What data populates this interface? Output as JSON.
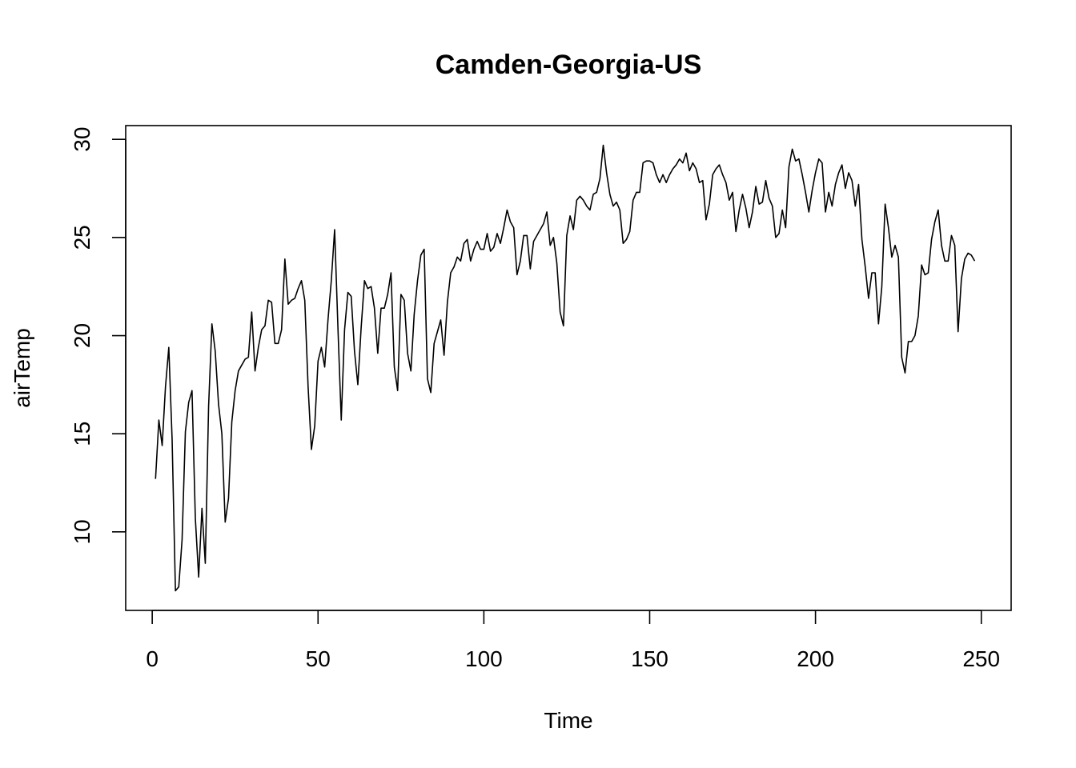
{
  "chart_data": {
    "type": "line",
    "title": "Camden-Georgia-US",
    "xlabel": "Time",
    "ylabel": "airTemp",
    "xlim": [
      -8,
      259
    ],
    "ylim": [
      6.0,
      30.7
    ],
    "xticks": [
      0,
      50,
      100,
      150,
      200,
      250
    ],
    "yticks": [
      10,
      15,
      20,
      25,
      30
    ],
    "grid": false,
    "legend": "none",
    "series": [
      {
        "values": [
          12.7,
          15.7,
          14.4,
          17.4,
          19.4,
          14.7,
          7.0,
          7.2,
          9.6,
          15.1,
          16.6,
          17.2,
          10.7,
          7.7,
          11.2,
          8.4,
          16.4,
          20.6,
          19.2,
          16.5,
          15.0,
          10.5,
          11.7,
          15.6,
          17.2,
          18.2,
          18.5,
          18.8,
          18.9,
          21.2,
          18.2,
          19.4,
          20.3,
          20.5,
          21.8,
          21.7,
          19.6,
          19.6,
          20.3,
          23.9,
          21.6,
          21.8,
          21.9,
          22.4,
          22.8,
          21.8,
          17.4,
          14.2,
          15.4,
          18.7,
          19.4,
          18.4,
          20.8,
          22.8,
          25.4,
          20.4,
          15.7,
          20.3,
          22.2,
          22.0,
          19.2,
          17.5,
          20.4,
          22.8,
          22.4,
          22.5,
          21.4,
          19.1,
          21.4,
          21.4,
          22.1,
          23.2,
          18.4,
          17.2,
          22.1,
          21.8,
          19.1,
          18.2,
          21.1,
          22.8,
          24.1,
          24.4,
          17.8,
          17.1,
          19.6,
          20.2,
          20.8,
          19.0,
          21.7,
          23.2,
          23.5,
          24.0,
          23.8,
          24.7,
          24.9,
          23.8,
          24.4,
          24.8,
          24.4,
          24.4,
          25.2,
          24.3,
          24.5,
          25.2,
          24.7,
          25.5,
          26.4,
          25.8,
          25.5,
          23.1,
          23.8,
          25.1,
          25.1,
          23.4,
          24.8,
          25.1,
          25.4,
          25.7,
          26.3,
          24.6,
          25.0,
          23.7,
          21.2,
          20.5,
          25.1,
          26.1,
          25.4,
          26.9,
          27.1,
          26.9,
          26.6,
          26.4,
          27.2,
          27.3,
          28.0,
          29.7,
          28.3,
          27.2,
          26.6,
          26.8,
          26.4,
          24.7,
          24.9,
          25.3,
          26.9,
          27.3,
          27.3,
          28.8,
          28.9,
          28.9,
          28.8,
          28.2,
          27.8,
          28.2,
          27.8,
          28.2,
          28.5,
          28.7,
          29.0,
          28.8,
          29.3,
          28.4,
          28.8,
          28.5,
          27.8,
          27.9,
          25.9,
          26.7,
          28.2,
          28.5,
          28.7,
          28.2,
          27.8,
          26.9,
          27.3,
          25.3,
          26.4,
          27.2,
          26.5,
          25.5,
          26.3,
          27.6,
          26.7,
          26.8,
          27.9,
          27.0,
          26.6,
          25.0,
          25.2,
          26.4,
          25.5,
          28.6,
          29.5,
          28.9,
          29.0,
          28.2,
          27.3,
          26.3,
          27.4,
          28.3,
          29.0,
          28.8,
          26.3,
          27.3,
          26.6,
          27.7,
          28.3,
          28.7,
          27.5,
          28.3,
          27.9,
          26.6,
          27.7,
          24.9,
          23.5,
          21.9,
          23.2,
          23.2,
          20.6,
          22.5,
          26.7,
          25.5,
          24.0,
          24.6,
          24.0,
          18.9,
          18.1,
          19.7,
          19.7,
          20.0,
          21.0,
          23.6,
          23.1,
          23.2,
          24.9,
          25.8,
          26.4,
          24.6,
          23.8,
          23.8,
          25.1,
          24.6,
          20.2,
          22.9,
          23.9,
          24.2,
          24.1,
          23.8
        ]
      }
    ]
  }
}
